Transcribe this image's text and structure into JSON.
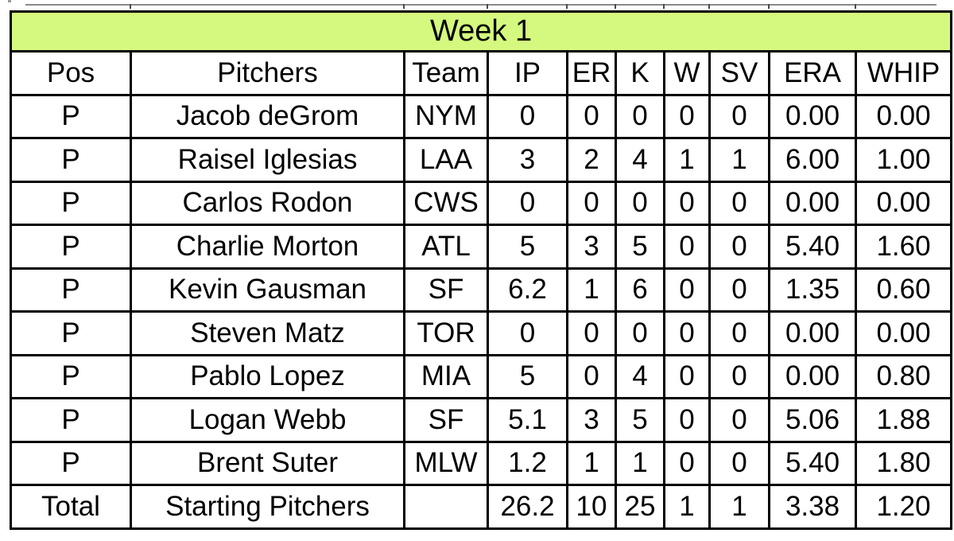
{
  "colors": {
    "title_bg": "#d5f97e",
    "border": "#000000",
    "cell_bg": "#ffffff",
    "text": "#000000",
    "remnant_gridline": "#8a8a8a"
  },
  "table": {
    "title": "Week 1",
    "columns": [
      "Pos",
      "Pitchers",
      "Team",
      "IP",
      "ER",
      "K",
      "W",
      "SV",
      "ERA",
      "WHIP"
    ],
    "column_keys": [
      "pos",
      "pitchers",
      "team",
      "ip",
      "er",
      "k",
      "w",
      "sv",
      "era",
      "whip"
    ],
    "rows": [
      [
        "P",
        "Jacob deGrom",
        "NYM",
        "0",
        "0",
        "0",
        "0",
        "0",
        "0.00",
        "0.00"
      ],
      [
        "P",
        "Raisel Iglesias",
        "LAA",
        "3",
        "2",
        "4",
        "1",
        "1",
        "6.00",
        "1.00"
      ],
      [
        "P",
        "Carlos Rodon",
        "CWS",
        "0",
        "0",
        "0",
        "0",
        "0",
        "0.00",
        "0.00"
      ],
      [
        "P",
        "Charlie Morton",
        "ATL",
        "5",
        "3",
        "5",
        "0",
        "0",
        "5.40",
        "1.60"
      ],
      [
        "P",
        "Kevin Gausman",
        "SF",
        "6.2",
        "1",
        "6",
        "0",
        "0",
        "1.35",
        "0.60"
      ],
      [
        "P",
        "Steven Matz",
        "TOR",
        "0",
        "0",
        "0",
        "0",
        "0",
        "0.00",
        "0.00"
      ],
      [
        "P",
        "Pablo Lopez",
        "MIA",
        "5",
        "0",
        "4",
        "0",
        "0",
        "0.00",
        "0.80"
      ],
      [
        "P",
        "Logan Webb",
        "SF",
        "5.1",
        "3",
        "5",
        "0",
        "0",
        "5.06",
        "1.88"
      ],
      [
        "P",
        "Brent Suter",
        "MLW",
        "1.2",
        "1",
        "1",
        "0",
        "0",
        "5.40",
        "1.80"
      ],
      [
        "Total",
        "Starting Pitchers",
        "",
        "26.2",
        "10",
        "25",
        "1",
        "1",
        "3.38",
        "1.20"
      ]
    ]
  }
}
